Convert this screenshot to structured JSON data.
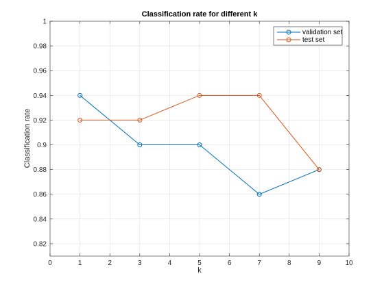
{
  "chart_data": {
    "type": "line",
    "title": "Classification rate for different k",
    "xlabel": "k",
    "ylabel": "Classification rate",
    "xlim": [
      0,
      10
    ],
    "ylim": [
      0.81,
      1.0
    ],
    "xticks": [
      0,
      1,
      2,
      3,
      4,
      5,
      6,
      7,
      8,
      9,
      10
    ],
    "yticks": [
      0.82,
      0.84,
      0.86,
      0.88,
      0.9,
      0.92,
      0.94,
      0.96,
      0.98,
      1
    ],
    "xtick_labels": [
      "0",
      "1",
      "2",
      "3",
      "4",
      "5",
      "6",
      "7",
      "8",
      "9",
      "10"
    ],
    "ytick_labels": [
      "0.82",
      "0.84",
      "0.86",
      "0.88",
      "0.9",
      "0.92",
      "0.94",
      "0.96",
      "0.98",
      "1"
    ],
    "grid": true,
    "legend_position": "top-right",
    "series": [
      {
        "name": "validation set",
        "color": "#0072BD",
        "marker": "circle",
        "x": [
          1,
          3,
          5,
          7,
          9
        ],
        "y": [
          0.94,
          0.9,
          0.9,
          0.86,
          0.88
        ]
      },
      {
        "name": "test set",
        "color": "#D95319",
        "marker": "circle",
        "x": [
          1,
          3,
          5,
          7,
          9
        ],
        "y": [
          0.92,
          0.92,
          0.94,
          0.94,
          0.88
        ]
      }
    ]
  }
}
